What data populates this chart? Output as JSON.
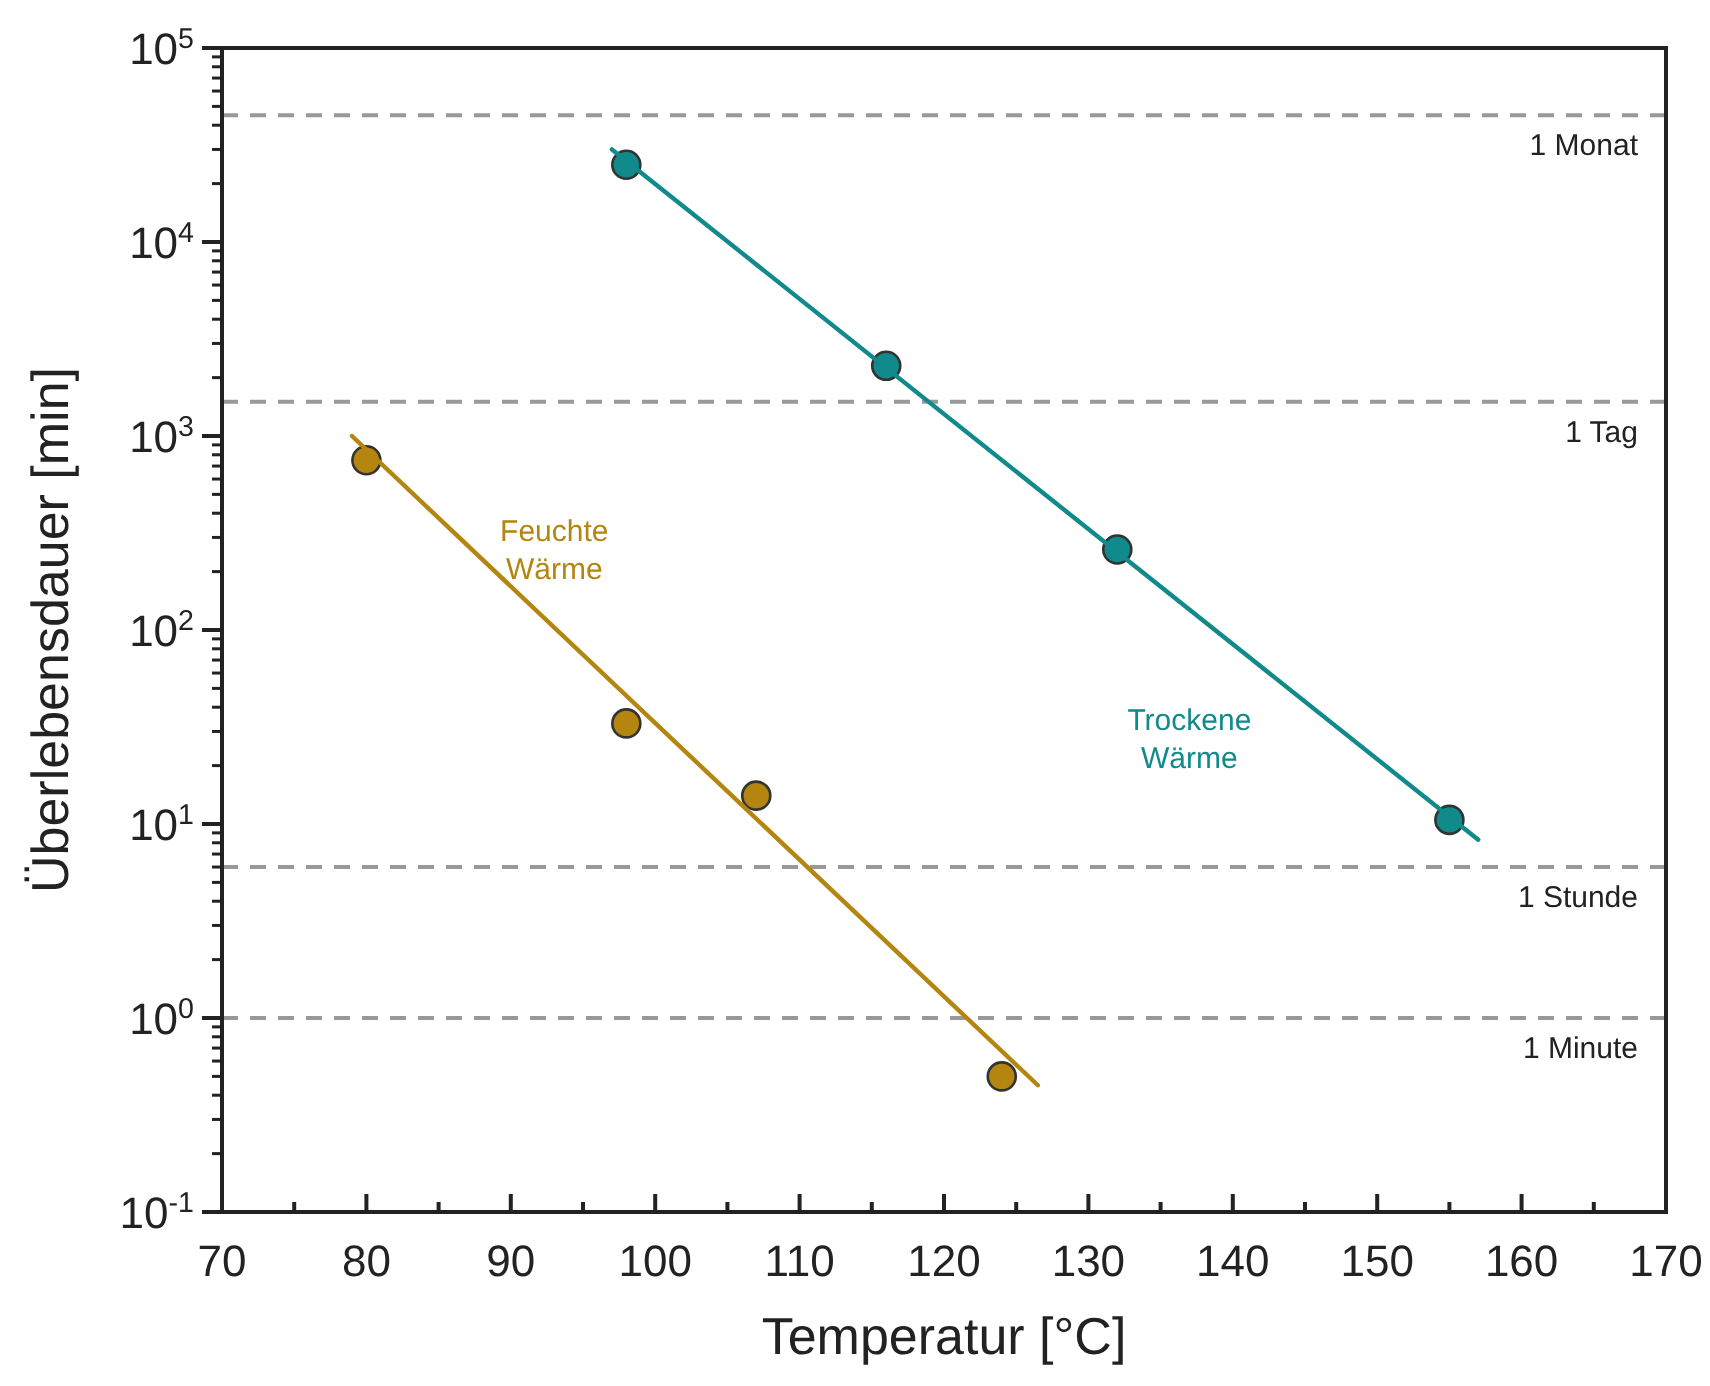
{
  "chart_data": {
    "type": "scatter",
    "xlabel": "Temperatur [°C]",
    "ylabel": "Überlebensdauer [min]",
    "log": "y",
    "grid": false,
    "legend": false,
    "marker": "circle",
    "xlim": [
      70,
      170
    ],
    "xticks": [
      70,
      {
        "value": 75,
        "label": null
      },
      80,
      {
        "value": 85,
        "label": null
      },
      90,
      {
        "value": 95,
        "label": null
      },
      100,
      {
        "value": 105,
        "label": null
      },
      110,
      {
        "value": 115,
        "label": null
      },
      120,
      {
        "value": 125,
        "label": null
      },
      130,
      {
        "value": 135,
        "label": null
      },
      140,
      {
        "value": 145,
        "label": null
      },
      150,
      {
        "value": 155,
        "label": null
      },
      160,
      {
        "value": 165,
        "label": null
      },
      170
    ],
    "ylim": [
      0.1,
      100000
    ],
    "yticks": [
      {
        "value": 0.1,
        "label": "10$^{-1}$"
      },
      {
        "value": 1,
        "label": "10$^{0}$"
      },
      {
        "value": 10,
        "label": "10$^{1}$"
      },
      {
        "value": 100,
        "label": "10$^{2}$"
      },
      {
        "value": 1000,
        "label": "10$^{3}$"
      },
      {
        "value": 10000,
        "label": "10$^{4}$"
      },
      {
        "value": 100000,
        "label": "10$^{5}$"
      }
    ],
    "series": [
      {
        "name": "Feuchte Wärme",
        "color": "#b5860f",
        "x": [
          80,
          98,
          107,
          124
        ],
        "values": [
          750,
          33,
          14,
          0.5
        ]
      },
      {
        "type": "line",
        "color": "#b5860f",
        "marker": "none",
        "x": [
          79,
          126.5
        ],
        "values": [
          1000,
          0.45
        ]
      },
      {
        "name": "Trockene Wärme",
        "color": "#108a8a",
        "x": [
          98,
          116,
          132,
          155
        ],
        "values": [
          25000,
          2300,
          260,
          10.5
        ]
      },
      {
        "type": "line",
        "color": "#108a8a",
        "marker": "none",
        "x": [
          97,
          157
        ],
        "values": [
          30000,
          8.3
        ]
      }
    ],
    "ref_lines": [
      {
        "axis": "y",
        "value": 45000,
        "label": "1 Monat",
        "color": "#999999",
        "line_style": "dashed"
      },
      {
        "axis": "y",
        "value": 1500,
        "label": "1 Tag",
        "color": "#999999",
        "line_style": "dashed"
      },
      {
        "axis": "y",
        "value": 6,
        "label": "1 Stunde",
        "color": "#999999",
        "line_style": "dashed"
      },
      {
        "axis": "y",
        "value": 1,
        "label": "1 Minute",
        "color": "#999999",
        "line_style": "dashed"
      }
    ]
  }
}
